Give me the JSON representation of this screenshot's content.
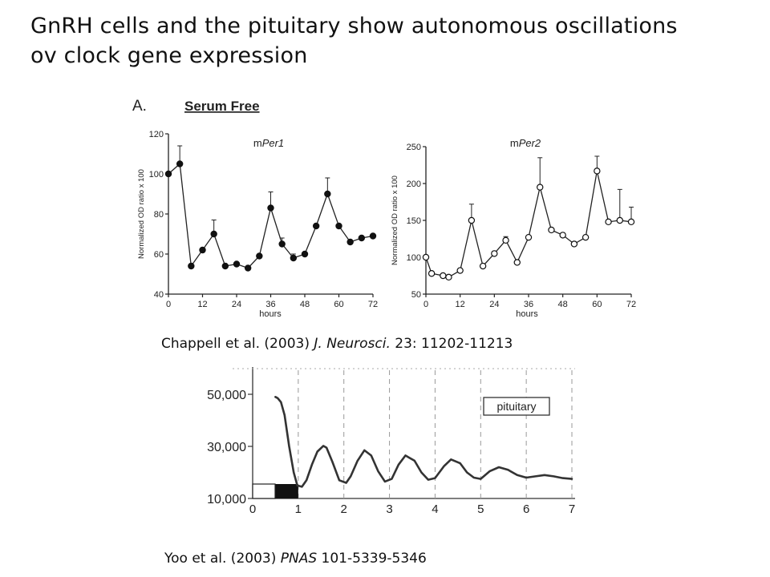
{
  "slide": {
    "title_line1": "GnRH cells and the pituitary show autonomous oscillations",
    "title_line2": "ov clock gene expression"
  },
  "citation1": {
    "authors": "Chappell et al. (2003) ",
    "journal": "J. Neurosci.",
    "rest": " 23: 11202-11213"
  },
  "citation2": {
    "authors": "Yoo et al.  (2003) ",
    "journal": "PNAS",
    "rest": " 101-5339-5346"
  },
  "panel_a": {
    "label": "A.",
    "condition": "Serum Free"
  },
  "chart_data": [
    {
      "type": "line",
      "title": "mPer1",
      "title_prefix": "m",
      "title_gene": "Per1",
      "xlabel": "hours",
      "ylabel": "Normalized OD ratio x 100",
      "xlim": [
        0,
        72
      ],
      "ylim": [
        40,
        120
      ],
      "xticks": [
        "0",
        "12",
        "24",
        "36",
        "48",
        "60",
        "72"
      ],
      "yticks": [
        "40",
        "60",
        "80",
        "100",
        "120"
      ],
      "marker": "filled-circle",
      "x": [
        0,
        4,
        8,
        12,
        16,
        20,
        24,
        28,
        32,
        36,
        40,
        44,
        48,
        52,
        56,
        60,
        64,
        68,
        72
      ],
      "y": [
        100,
        105,
        54,
        62,
        70,
        54,
        55,
        53,
        59,
        83,
        65,
        58,
        60,
        74,
        90,
        74,
        66,
        68,
        69
      ],
      "error": [
        0,
        9,
        0,
        0,
        7,
        0,
        0,
        0,
        0,
        8,
        3,
        2,
        0,
        0,
        8,
        0,
        0,
        0,
        1
      ]
    },
    {
      "type": "line",
      "title": "mPer2",
      "title_prefix": "m",
      "title_gene": "Per2",
      "xlabel": "hours",
      "ylabel": "Normalized OD ratio x 100",
      "xlim": [
        0,
        72
      ],
      "ylim": [
        50,
        250
      ],
      "xticks": [
        "0",
        "12",
        "24",
        "36",
        "48",
        "60",
        "72"
      ],
      "yticks": [
        "50",
        "100",
        "150",
        "200",
        "250"
      ],
      "marker": "open-circle",
      "x": [
        0,
        2,
        6,
        8,
        12,
        16,
        20,
        24,
        28,
        32,
        36,
        40,
        44,
        48,
        52,
        56,
        60,
        64,
        68,
        72
      ],
      "y": [
        100,
        78,
        75,
        73,
        82,
        150,
        88,
        105,
        123,
        93,
        127,
        195,
        137,
        130,
        118,
        127,
        217,
        148,
        150,
        148
      ],
      "error": [
        0,
        0,
        0,
        0,
        0,
        22,
        0,
        0,
        5,
        0,
        0,
        40,
        0,
        0,
        0,
        0,
        20,
        0,
        42,
        20
      ]
    },
    {
      "type": "line",
      "title": "",
      "legend": "pituitary",
      "xlim": [
        0,
        7
      ],
      "ylim": [
        10000,
        50000
      ],
      "xticks": [
        "0",
        "1",
        "2",
        "3",
        "4",
        "5",
        "6",
        "7"
      ],
      "yticks": [
        "10,000",
        "30,000",
        "50,000"
      ],
      "light_dark_bar": {
        "dark_start": 0.5,
        "dark_end": 1.0
      },
      "x": [
        0.5,
        0.55,
        0.62,
        0.7,
        0.8,
        0.9,
        0.98,
        1.08,
        1.18,
        1.3,
        1.42,
        1.55,
        1.62,
        1.75,
        1.9,
        2.05,
        2.15,
        2.3,
        2.45,
        2.6,
        2.75,
        2.9,
        3.05,
        3.2,
        3.35,
        3.55,
        3.7,
        3.85,
        4.0,
        4.2,
        4.35,
        4.55,
        4.7,
        4.85,
        5.0,
        5.2,
        5.4,
        5.6,
        5.8,
        6.0,
        6.2,
        6.4,
        6.6,
        6.8,
        7.0
      ],
      "y": [
        49000,
        48500,
        47000,
        42000,
        30000,
        20000,
        15000,
        14500,
        17000,
        23000,
        28000,
        30200,
        29500,
        24000,
        17000,
        16000,
        18500,
        24500,
        28500,
        26500,
        20500,
        16500,
        17500,
        23000,
        26500,
        24500,
        20000,
        17200,
        17800,
        22500,
        25000,
        23500,
        20000,
        18000,
        17500,
        20500,
        22000,
        21000,
        19000,
        18000,
        18500,
        19000,
        18500,
        17800,
        17500
      ]
    }
  ]
}
